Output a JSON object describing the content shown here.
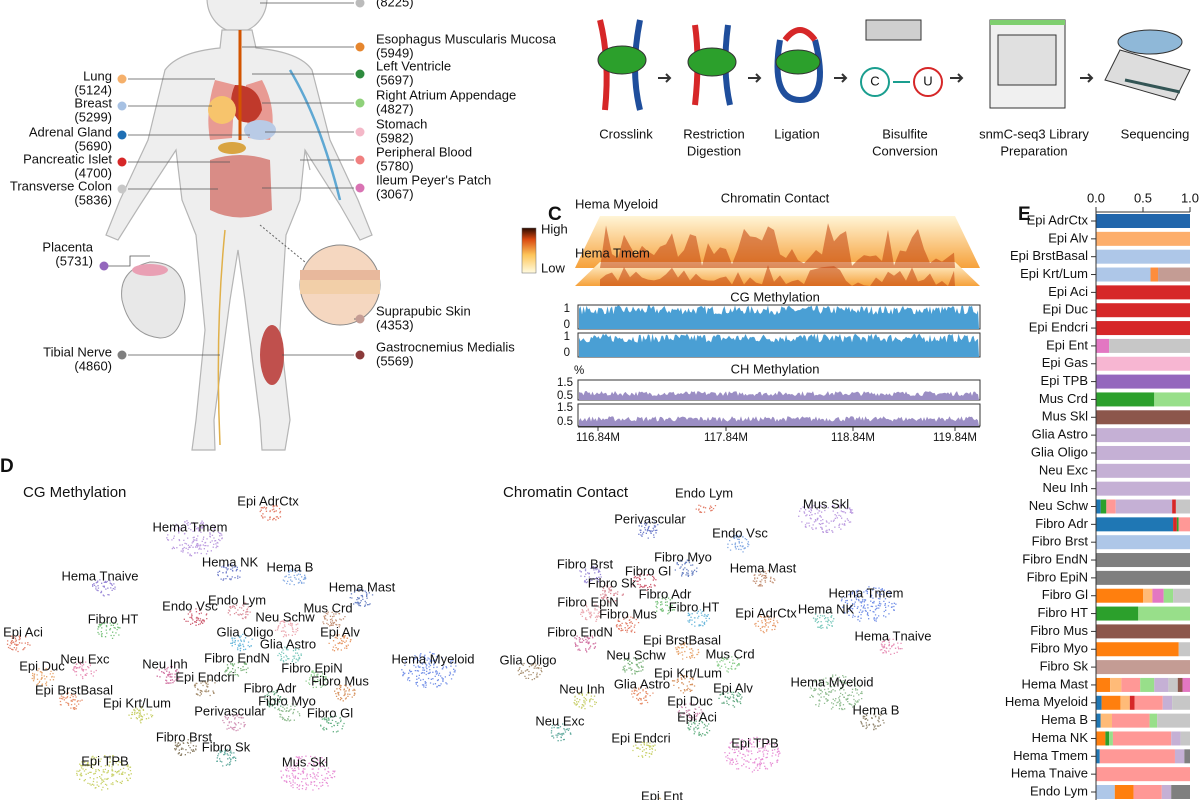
{
  "panel_a": {
    "tissues": [
      {
        "label": "Lung",
        "count": "(5124)",
        "color": "#f5b06b"
      },
      {
        "label": "Breast",
        "count": "(5299)",
        "color": "#a7c1e3"
      },
      {
        "label": "Adrenal Gland",
        "count": "(5690)",
        "color": "#1f6fb4"
      },
      {
        "label": "Pancreatic Islet",
        "count": "(4700)",
        "color": "#d62728"
      },
      {
        "label": "Transverse Colon",
        "count": "(5836)",
        "color": "#c7c7c7"
      },
      {
        "label": "Placenta",
        "count": "(5731)",
        "color": "#9467bd"
      },
      {
        "label": "Tibial Nerve",
        "count": "(4860)",
        "color": "#7f7f7f"
      },
      {
        "count": "(8225)",
        "color": "#bbbbbb"
      },
      {
        "label": "Esophagus Muscularis Mucosa",
        "count": "(5949)",
        "color": "#e6862e"
      },
      {
        "label": "Left Ventricle",
        "count": "(5697)",
        "color": "#2e8b3e"
      },
      {
        "label": "Right Atrium Appendage",
        "count": "(4827)",
        "color": "#8fd17a"
      },
      {
        "label": "Stomach",
        "count": "(5982)",
        "color": "#f4b8c8"
      },
      {
        "label": "Peripheral Blood",
        "count": "(5780)",
        "color": "#f08080"
      },
      {
        "label": "Ileum Peyer's Patch",
        "count": "(3067)",
        "color": "#d973b3"
      },
      {
        "label": "Suprapubic Skin",
        "count": "(4353)",
        "color": "#c49c94"
      },
      {
        "label": "Gastrocnemius Medialis",
        "count": "(5569)",
        "color": "#8b3a3a"
      }
    ]
  },
  "panel_b": {
    "steps": [
      [
        "Crosslink"
      ],
      [
        "Restriction",
        "Digestion"
      ],
      [
        "Ligation"
      ],
      [
        "Bisulfite",
        "Conversion"
      ],
      [
        "snmC-seq3 Library",
        "Preparation"
      ],
      [
        "Sequencing"
      ]
    ]
  },
  "panel_c": {
    "label": "C",
    "heatmap_title": "Chromatin Contact",
    "samples": [
      "Hema Myeloid",
      "Hema Tmem"
    ],
    "scale": [
      "High",
      "Low"
    ],
    "cg_title": "CG Methylation",
    "cg_ticks": [
      "1",
      "0"
    ],
    "ch_title": "CH Methylation",
    "ch_unit": "%",
    "ch_ticks": [
      "1.5",
      "0.5"
    ],
    "x_ticks": [
      "116.84M",
      "117.84M",
      "118.84M",
      "119.84M"
    ]
  },
  "panel_d": {
    "label": "D",
    "embeddings": [
      {
        "title": "CG Methylation",
        "clusters": [
          "Epi AdrCtx",
          "Hema Tmem",
          "Hema NK",
          "Hema B",
          "Hema Tnaive",
          "Hema Mast",
          "Endo Vsc",
          "Endo Lym",
          "Mus Crd",
          "Neu Schw",
          "Fibro HT",
          "Epi Aci",
          "Glia Oligo",
          "Epi Alv",
          "Glia Astro",
          "Hema Myeloid",
          "Neu Exc",
          "Neu Inh",
          "Epi Duc",
          "Fibro EndN",
          "Fibro EpiN",
          "Epi Endcri",
          "Fibro Mus",
          "Epi BrstBasal",
          "Fibro Adr",
          "Fibro Myo",
          "Epi Krt/Lum",
          "Perivascular",
          "Fibro Gl",
          "Fibro Brst",
          "Fibro Sk",
          "Epi TPB",
          "Mus Skl"
        ]
      },
      {
        "title": "Chromatin Contact",
        "clusters": [
          "Endo Lym",
          "Mus Skl",
          "Perivascular",
          "Endo Vsc",
          "Fibro Brst",
          "Fibro Myo",
          "Fibro Gl",
          "Fibro Sk",
          "Hema Mast",
          "Fibro EpiN",
          "Fibro Adr",
          "Fibro Mus",
          "Fibro HT",
          "Epi AdrCtx",
          "Hema NK",
          "Hema Tmem",
          "Hema Tnaive",
          "Fibro EndN",
          "Epi BrstBasal",
          "Neu Schw",
          "Mus Crd",
          "Glia Oligo",
          "Epi Krt/Lum",
          "Glia Astro",
          "Epi Alv",
          "Hema Myeloid",
          "Neu Inh",
          "Epi Duc",
          "Epi Aci",
          "Hema B",
          "Neu Exc",
          "Epi Endcri",
          "Epi TPB",
          "Epi Ent"
        ]
      }
    ]
  },
  "panel_e": {
    "label": "E",
    "xlim": [
      0,
      1
    ],
    "xticks": [
      {
        "value": 0,
        "label": "0.0"
      },
      {
        "value": 0.5,
        "label": "0.5"
      },
      {
        "value": 1,
        "label": "1.0"
      }
    ],
    "rows": [
      {
        "label": "Epi AdrCtx",
        "segments": [
          {
            "color": "#2166ac",
            "value": 1
          }
        ]
      },
      {
        "label": "Epi Alv",
        "segments": [
          {
            "color": "#fdae6b",
            "value": 1
          }
        ]
      },
      {
        "label": "Epi BrstBasal",
        "segments": [
          {
            "color": "#aec7e8",
            "value": 1
          }
        ]
      },
      {
        "label": "Epi Krt/Lum",
        "segments": [
          {
            "color": "#aec7e8",
            "value": 0.58
          },
          {
            "color": "#fd8d3c",
            "value": 0.08
          },
          {
            "color": "#c49c94",
            "value": 0.34
          }
        ]
      },
      {
        "label": "Epi Aci",
        "segments": [
          {
            "color": "#d62728",
            "value": 1
          }
        ]
      },
      {
        "label": "Epi Duc",
        "segments": [
          {
            "color": "#d62728",
            "value": 1
          }
        ]
      },
      {
        "label": "Epi Endcri",
        "segments": [
          {
            "color": "#d62728",
            "value": 1
          }
        ]
      },
      {
        "label": "Epi Ent",
        "segments": [
          {
            "color": "#e377c2",
            "value": 0.14
          },
          {
            "color": "#c7c7c7",
            "value": 0.86
          }
        ]
      },
      {
        "label": "Epi Gas",
        "segments": [
          {
            "color": "#f7b6d2",
            "value": 1
          }
        ]
      },
      {
        "label": "Epi TPB",
        "segments": [
          {
            "color": "#9467bd",
            "value": 1
          }
        ]
      },
      {
        "label": "Mus Crd",
        "segments": [
          {
            "color": "#2ca02c",
            "value": 0.62
          },
          {
            "color": "#98df8a",
            "value": 0.38
          }
        ]
      },
      {
        "label": "Mus Skl",
        "segments": [
          {
            "color": "#8c564b",
            "value": 1
          }
        ]
      },
      {
        "label": "Glia Astro",
        "segments": [
          {
            "color": "#c5b0d5",
            "value": 1
          }
        ]
      },
      {
        "label": "Glia Oligo",
        "segments": [
          {
            "color": "#c5b0d5",
            "value": 1
          }
        ]
      },
      {
        "label": "Neu Exc",
        "segments": [
          {
            "color": "#c5b0d5",
            "value": 1
          }
        ]
      },
      {
        "label": "Neu Inh",
        "segments": [
          {
            "color": "#c5b0d5",
            "value": 1
          }
        ]
      },
      {
        "label": "Neu Schw",
        "segments": [
          {
            "color": "#1f77b4",
            "value": 0.05
          },
          {
            "color": "#2ca02c",
            "value": 0.06
          },
          {
            "color": "#ff9896",
            "value": 0.1
          },
          {
            "color": "#c5b0d5",
            "value": 0.6
          },
          {
            "color": "#d62728",
            "value": 0.04
          },
          {
            "color": "#c7c7c7",
            "value": 0.15
          }
        ]
      },
      {
        "label": "Fibro Adr",
        "segments": [
          {
            "color": "#1f77b4",
            "value": 0.82
          },
          {
            "color": "#d62728",
            "value": 0.04
          },
          {
            "color": "#2ca02c",
            "value": 0.02
          },
          {
            "color": "#ff9896",
            "value": 0.12
          }
        ]
      },
      {
        "label": "Fibro Brst",
        "segments": [
          {
            "color": "#aec7e8",
            "value": 1
          }
        ]
      },
      {
        "label": "Fibro EndN",
        "segments": [
          {
            "color": "#7f7f7f",
            "value": 1
          }
        ]
      },
      {
        "label": "Fibro EpiN",
        "segments": [
          {
            "color": "#7f7f7f",
            "value": 1
          }
        ]
      },
      {
        "label": "Fibro Gl",
        "segments": [
          {
            "color": "#ff7f0e",
            "value": 0.5
          },
          {
            "color": "#ffbb78",
            "value": 0.1
          },
          {
            "color": "#e377c2",
            "value": 0.12
          },
          {
            "color": "#98df8a",
            "value": 0.1
          },
          {
            "color": "#c7c7c7",
            "value": 0.18
          }
        ]
      },
      {
        "label": "Fibro HT",
        "segments": [
          {
            "color": "#2ca02c",
            "value": 0.45
          },
          {
            "color": "#98df8a",
            "value": 0.55
          }
        ]
      },
      {
        "label": "Fibro Mus",
        "segments": [
          {
            "color": "#8c564b",
            "value": 1
          }
        ]
      },
      {
        "label": "Fibro Myo",
        "segments": [
          {
            "color": "#ff7f0e",
            "value": 0.88
          },
          {
            "color": "#c7c7c7",
            "value": 0.12
          }
        ]
      },
      {
        "label": "Fibro Sk",
        "segments": [
          {
            "color": "#c49c94",
            "value": 1
          }
        ]
      },
      {
        "label": "Hema Mast",
        "segments": [
          {
            "color": "#ff7f0e",
            "value": 0.15
          },
          {
            "color": "#ffbb78",
            "value": 0.12
          },
          {
            "color": "#ff9896",
            "value": 0.2
          },
          {
            "color": "#98df8a",
            "value": 0.15
          },
          {
            "color": "#c5b0d5",
            "value": 0.15
          },
          {
            "color": "#c7c7c7",
            "value": 0.1
          },
          {
            "color": "#8c564b",
            "value": 0.05
          },
          {
            "color": "#e377c2",
            "value": 0.08
          }
        ]
      },
      {
        "label": "Hema Myeloid",
        "segments": [
          {
            "color": "#1f77b4",
            "value": 0.06
          },
          {
            "color": "#ff7f0e",
            "value": 0.2
          },
          {
            "color": "#ffbb78",
            "value": 0.1
          },
          {
            "color": "#d62728",
            "value": 0.05
          },
          {
            "color": "#ff9896",
            "value": 0.3
          },
          {
            "color": "#c5b0d5",
            "value": 0.1
          },
          {
            "color": "#c7c7c7",
            "value": 0.19
          }
        ]
      },
      {
        "label": "Hema B",
        "segments": [
          {
            "color": "#1f77b4",
            "value": 0.05
          },
          {
            "color": "#ffbb78",
            "value": 0.12
          },
          {
            "color": "#ff9896",
            "value": 0.4
          },
          {
            "color": "#98df8a",
            "value": 0.08
          },
          {
            "color": "#c7c7c7",
            "value": 0.35
          }
        ]
      },
      {
        "label": "Hema NK",
        "segments": [
          {
            "color": "#ff7f0e",
            "value": 0.1
          },
          {
            "color": "#2ca02c",
            "value": 0.04
          },
          {
            "color": "#98df8a",
            "value": 0.04
          },
          {
            "color": "#ff9896",
            "value": 0.62
          },
          {
            "color": "#c5b0d5",
            "value": 0.1
          },
          {
            "color": "#c7c7c7",
            "value": 0.1
          }
        ]
      },
      {
        "label": "Hema Tmem",
        "segments": [
          {
            "color": "#1f77b4",
            "value": 0.04
          },
          {
            "color": "#ff9896",
            "value": 0.8
          },
          {
            "color": "#c5b0d5",
            "value": 0.1
          },
          {
            "color": "#7f7f7f",
            "value": 0.06
          }
        ]
      },
      {
        "label": "Hema Tnaive",
        "segments": [
          {
            "color": "#ff9896",
            "value": 1
          }
        ]
      },
      {
        "label": "Endo Lym",
        "segments": [
          {
            "color": "#aec7e8",
            "value": 0.2
          },
          {
            "color": "#ff7f0e",
            "value": 0.2
          },
          {
            "color": "#ff9896",
            "value": 0.3
          },
          {
            "color": "#c5b0d5",
            "value": 0.1
          },
          {
            "color": "#7f7f7f",
            "value": 0.2
          }
        ]
      }
    ]
  }
}
